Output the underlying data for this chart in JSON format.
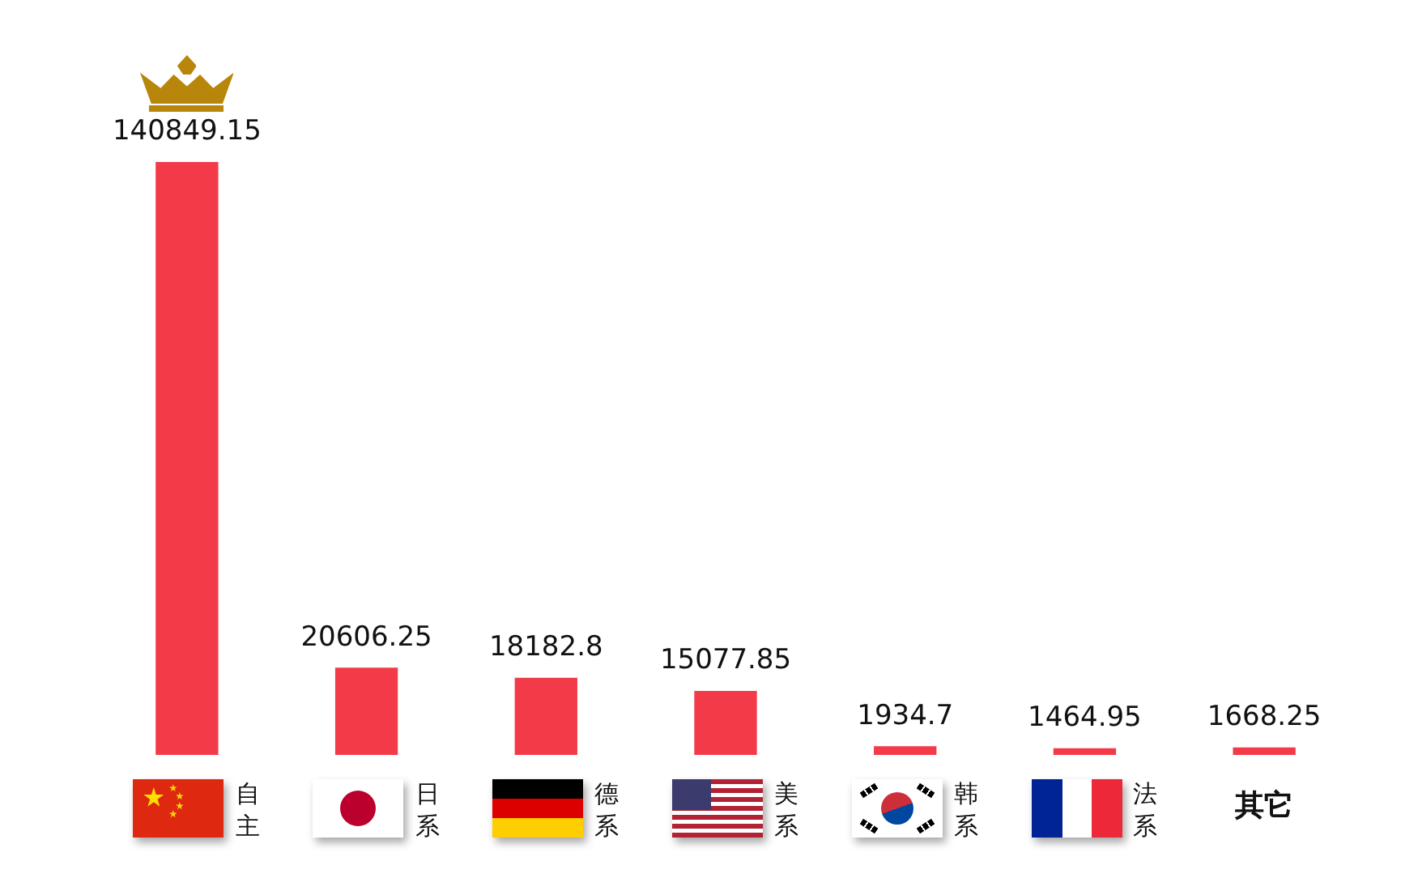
{
  "chart_data": {
    "type": "bar",
    "categories": [
      "自主",
      "日系",
      "德系",
      "美系",
      "韩系",
      "法系",
      "其它"
    ],
    "values": [
      140849.15,
      20606.25,
      18182.8,
      15077.85,
      1934.7,
      1464.95,
      1668.25
    ],
    "color": "#f23a48",
    "data_labels": true
  }
}
